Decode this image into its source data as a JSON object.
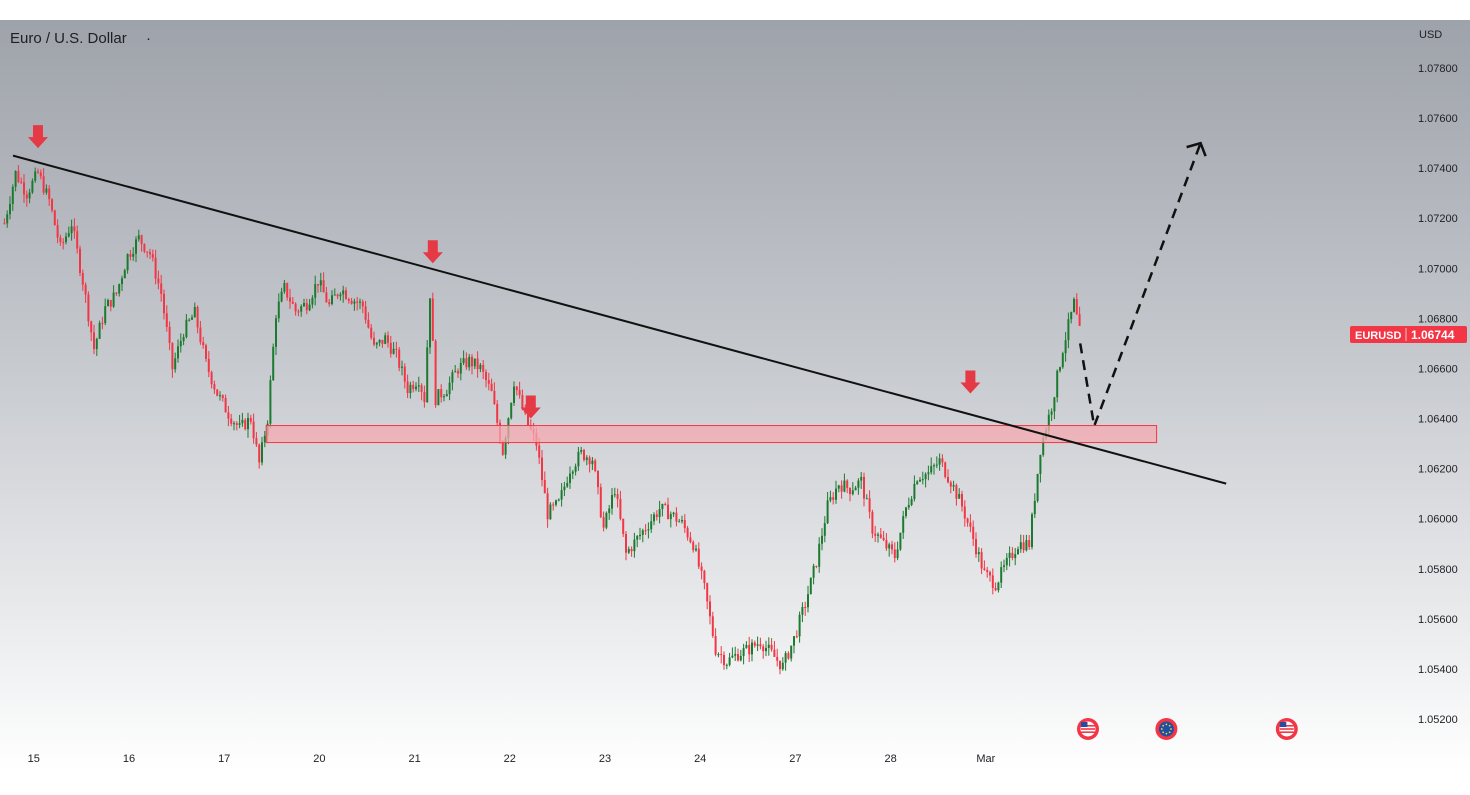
{
  "header": {
    "title": "Euro / U.S. Dollar",
    "dot": "·"
  },
  "price_scale": {
    "currency": "USD"
  },
  "symbol_tag": {
    "label": "EURUSD",
    "price": "1.06744"
  },
  "colors": {
    "up": "#1b7a2f",
    "down": "#f23645",
    "arrow": "#e53946",
    "zone_fill": "#f6a9b0",
    "zone_stroke": "#f23645",
    "trendline": "#111111",
    "tag_bg": "#f23645",
    "bg_top": "#9ea2aa",
    "bg_bottom": "#ffffff"
  },
  "chart_data": {
    "type": "candlestick",
    "symbol": "EURUSD",
    "y_axis": {
      "ticks": [
        "1.07800",
        "1.07600",
        "1.07400",
        "1.07200",
        "1.07000",
        "1.06800",
        "1.06600",
        "1.06400",
        "1.06200",
        "1.06000",
        "1.05800",
        "1.05600",
        "1.05400",
        "1.05200"
      ],
      "range": [
        1.0515,
        1.0795
      ]
    },
    "x_axis": {
      "ticks": [
        "15",
        "16",
        "17",
        "20",
        "21",
        "22",
        "23",
        "24",
        "27",
        "28",
        "Mar"
      ]
    },
    "last_price": 1.06744,
    "close_path": [
      [
        0,
        1.0718
      ],
      [
        4,
        1.0738
      ],
      [
        8,
        1.073
      ],
      [
        12,
        1.0738
      ],
      [
        16,
        1.0727
      ],
      [
        20,
        1.0708
      ],
      [
        24,
        1.0718
      ],
      [
        28,
        1.0695
      ],
      [
        32,
        1.0668
      ],
      [
        36,
        1.0684
      ],
      [
        40,
        1.069
      ],
      [
        44,
        1.0705
      ],
      [
        48,
        1.0712
      ],
      [
        52,
        1.0706
      ],
      [
        56,
        1.069
      ],
      [
        60,
        1.066
      ],
      [
        64,
        1.0675
      ],
      [
        68,
        1.0682
      ],
      [
        72,
        1.0662
      ],
      [
        76,
        1.065
      ],
      [
        80,
        1.0642
      ],
      [
        84,
        1.0636
      ],
      [
        88,
        1.064
      ],
      [
        91,
        1.0622
      ],
      [
        94,
        1.064
      ],
      [
        97,
        1.0682
      ],
      [
        100,
        1.0692
      ],
      [
        104,
        1.0683
      ],
      [
        108,
        1.0686
      ],
      [
        112,
        1.0695
      ],
      [
        116,
        1.0685
      ],
      [
        120,
        1.0692
      ],
      [
        124,
        1.0688
      ],
      [
        128,
        1.0685
      ],
      [
        132,
        1.0668
      ],
      [
        136,
        1.0672
      ],
      [
        140,
        1.0665
      ],
      [
        144,
        1.0652
      ],
      [
        148,
        1.0656
      ],
      [
        150,
        1.0648
      ],
      [
        152,
        1.069
      ],
      [
        154,
        1.0648
      ],
      [
        158,
        1.0652
      ],
      [
        162,
        1.066
      ],
      [
        166,
        1.0663
      ],
      [
        170,
        1.066
      ],
      [
        174,
        1.065
      ],
      [
        178,
        1.0627
      ],
      [
        182,
        1.0655
      ],
      [
        186,
        1.064
      ],
      [
        190,
        1.063
      ],
      [
        194,
        1.0602
      ],
      [
        198,
        1.0606
      ],
      [
        202,
        1.062
      ],
      [
        206,
        1.0626
      ],
      [
        210,
        1.0624
      ],
      [
        214,
        1.0596
      ],
      [
        218,
        1.0612
      ],
      [
        222,
        1.0586
      ],
      [
        226,
        1.0592
      ],
      [
        230,
        1.0598
      ],
      [
        234,
        1.0604
      ],
      [
        238,
        1.0602
      ],
      [
        242,
        1.0598
      ],
      [
        246,
        1.059
      ],
      [
        250,
        1.0572
      ],
      [
        254,
        1.0548
      ],
      [
        258,
        1.0543
      ],
      [
        262,
        1.0546
      ],
      [
        266,
        1.0548
      ],
      [
        270,
        1.0551
      ],
      [
        274,
        1.0546
      ],
      [
        278,
        1.0541
      ],
      [
        282,
        1.0552
      ],
      [
        286,
        1.0566
      ],
      [
        290,
        1.0583
      ],
      [
        294,
        1.0605
      ],
      [
        298,
        1.0614
      ],
      [
        302,
        1.0612
      ],
      [
        306,
        1.0615
      ],
      [
        310,
        1.0596
      ],
      [
        314,
        1.059
      ],
      [
        318,
        1.0585
      ],
      [
        322,
        1.0604
      ],
      [
        326,
        1.0617
      ],
      [
        330,
        1.0618
      ],
      [
        334,
        1.0623
      ],
      [
        338,
        1.0615
      ],
      [
        342,
        1.0605
      ],
      [
        346,
        1.0592
      ],
      [
        350,
        1.0578
      ],
      [
        354,
        1.0574
      ],
      [
        358,
        1.0582
      ],
      [
        362,
        1.059
      ],
      [
        366,
        1.059
      ],
      [
        370,
        1.0628
      ],
      [
        374,
        1.0645
      ],
      [
        378,
        1.0668
      ],
      [
        382,
        1.0686
      ],
      [
        384,
        1.06744
      ]
    ],
    "resistance_trendline": {
      "start": {
        "bar": 0,
        "price": 1.0745
      },
      "end": {
        "bar": 434,
        "price": 1.0614
      }
    },
    "support_zone": {
      "price_top": 1.06356,
      "price_bottom": 1.0632,
      "from_bar": 94,
      "to_bar": 412
    },
    "projection_path": [
      {
        "bar": 384,
        "price": 1.067
      },
      {
        "bar": 389,
        "price": 1.0637
      },
      {
        "bar": 427,
        "price": 1.075
      }
    ],
    "sell_markers": [
      {
        "bar": 12,
        "price": 1.0746
      },
      {
        "bar": 153,
        "price": 1.07
      },
      {
        "bar": 188,
        "price": 1.0638
      },
      {
        "bar": 345,
        "price": 1.0648
      }
    ],
    "event_icons": [
      {
        "bar": 387,
        "kind": "us-flag"
      },
      {
        "bar": 415,
        "kind": "eu-flag"
      },
      {
        "bar": 458,
        "kind": "us-flag"
      }
    ],
    "x_tick_positions": [
      {
        "label": "15",
        "bar": 11
      },
      {
        "label": "16",
        "bar": 45
      },
      {
        "label": "17",
        "bar": 79
      },
      {
        "label": "20",
        "bar": 113
      },
      {
        "label": "21",
        "bar": 147
      },
      {
        "label": "22",
        "bar": 181
      },
      {
        "label": "23",
        "bar": 215
      },
      {
        "label": "24",
        "bar": 249
      },
      {
        "label": "27",
        "bar": 283
      },
      {
        "label": "28",
        "bar": 317
      },
      {
        "label": "Mar",
        "bar": 351
      }
    ]
  }
}
